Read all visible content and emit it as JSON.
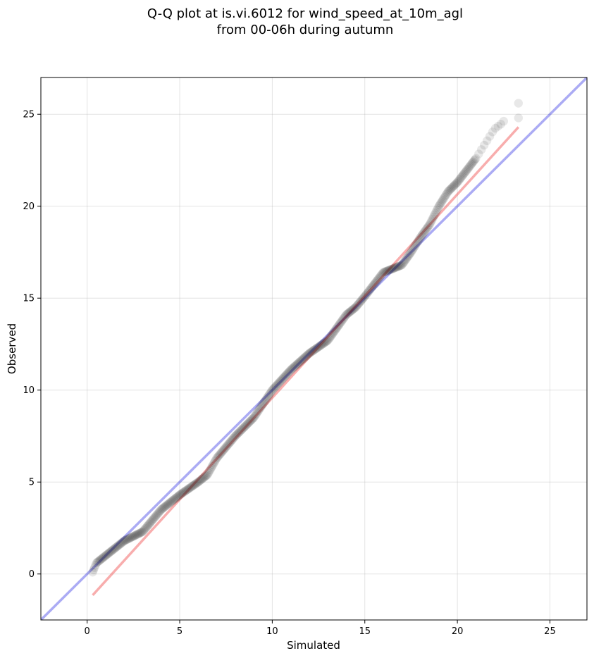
{
  "chart_data": {
    "type": "scatter",
    "title": "Q-Q plot at is.vi.6012 for wind_speed_at_10m_agl",
    "subtitle": "from 00-06h during autumn",
    "xlabel": "Simulated",
    "ylabel": "Observed",
    "xlim": [
      -2.5,
      27.0
    ],
    "ylim": [
      -2.5,
      27.0
    ],
    "xticks": [
      0,
      5,
      10,
      15,
      20,
      25
    ],
    "yticks": [
      0,
      5,
      10,
      15,
      20,
      25
    ],
    "grid": true,
    "points_color": "#000000",
    "identity_line": {
      "x": [
        -2.5,
        27.0
      ],
      "y": [
        -2.5,
        27.0
      ],
      "color": "#0000dd"
    },
    "fit_line": {
      "x": [
        0.3,
        23.3
      ],
      "y": [
        -1.15,
        24.3
      ],
      "color": "#ee3333"
    },
    "quantile_knots": {
      "x": [
        0.3,
        0.5,
        1.0,
        1.5,
        2.0,
        3.0,
        4.0,
        5.0,
        6.0,
        6.5,
        7.0,
        8.0,
        9.0,
        10.0,
        11.0,
        12.0,
        13.0,
        14.0,
        14.5,
        15.0,
        16.0,
        17.0,
        17.5,
        18.0,
        18.5,
        19.0,
        19.5,
        20.0,
        21.0,
        22.0,
        22.4,
        23.3
      ],
      "y": [
        0.1,
        0.6,
        1.0,
        1.4,
        1.8,
        2.3,
        3.5,
        4.3,
        5.0,
        5.4,
        6.3,
        7.5,
        8.5,
        10.0,
        11.1,
        12.0,
        12.7,
        14.1,
        14.5,
        15.1,
        16.4,
        16.8,
        17.5,
        18.3,
        19.0,
        20.0,
        20.8,
        21.3,
        22.6,
        24.2,
        24.5,
        25.6
      ]
    }
  }
}
